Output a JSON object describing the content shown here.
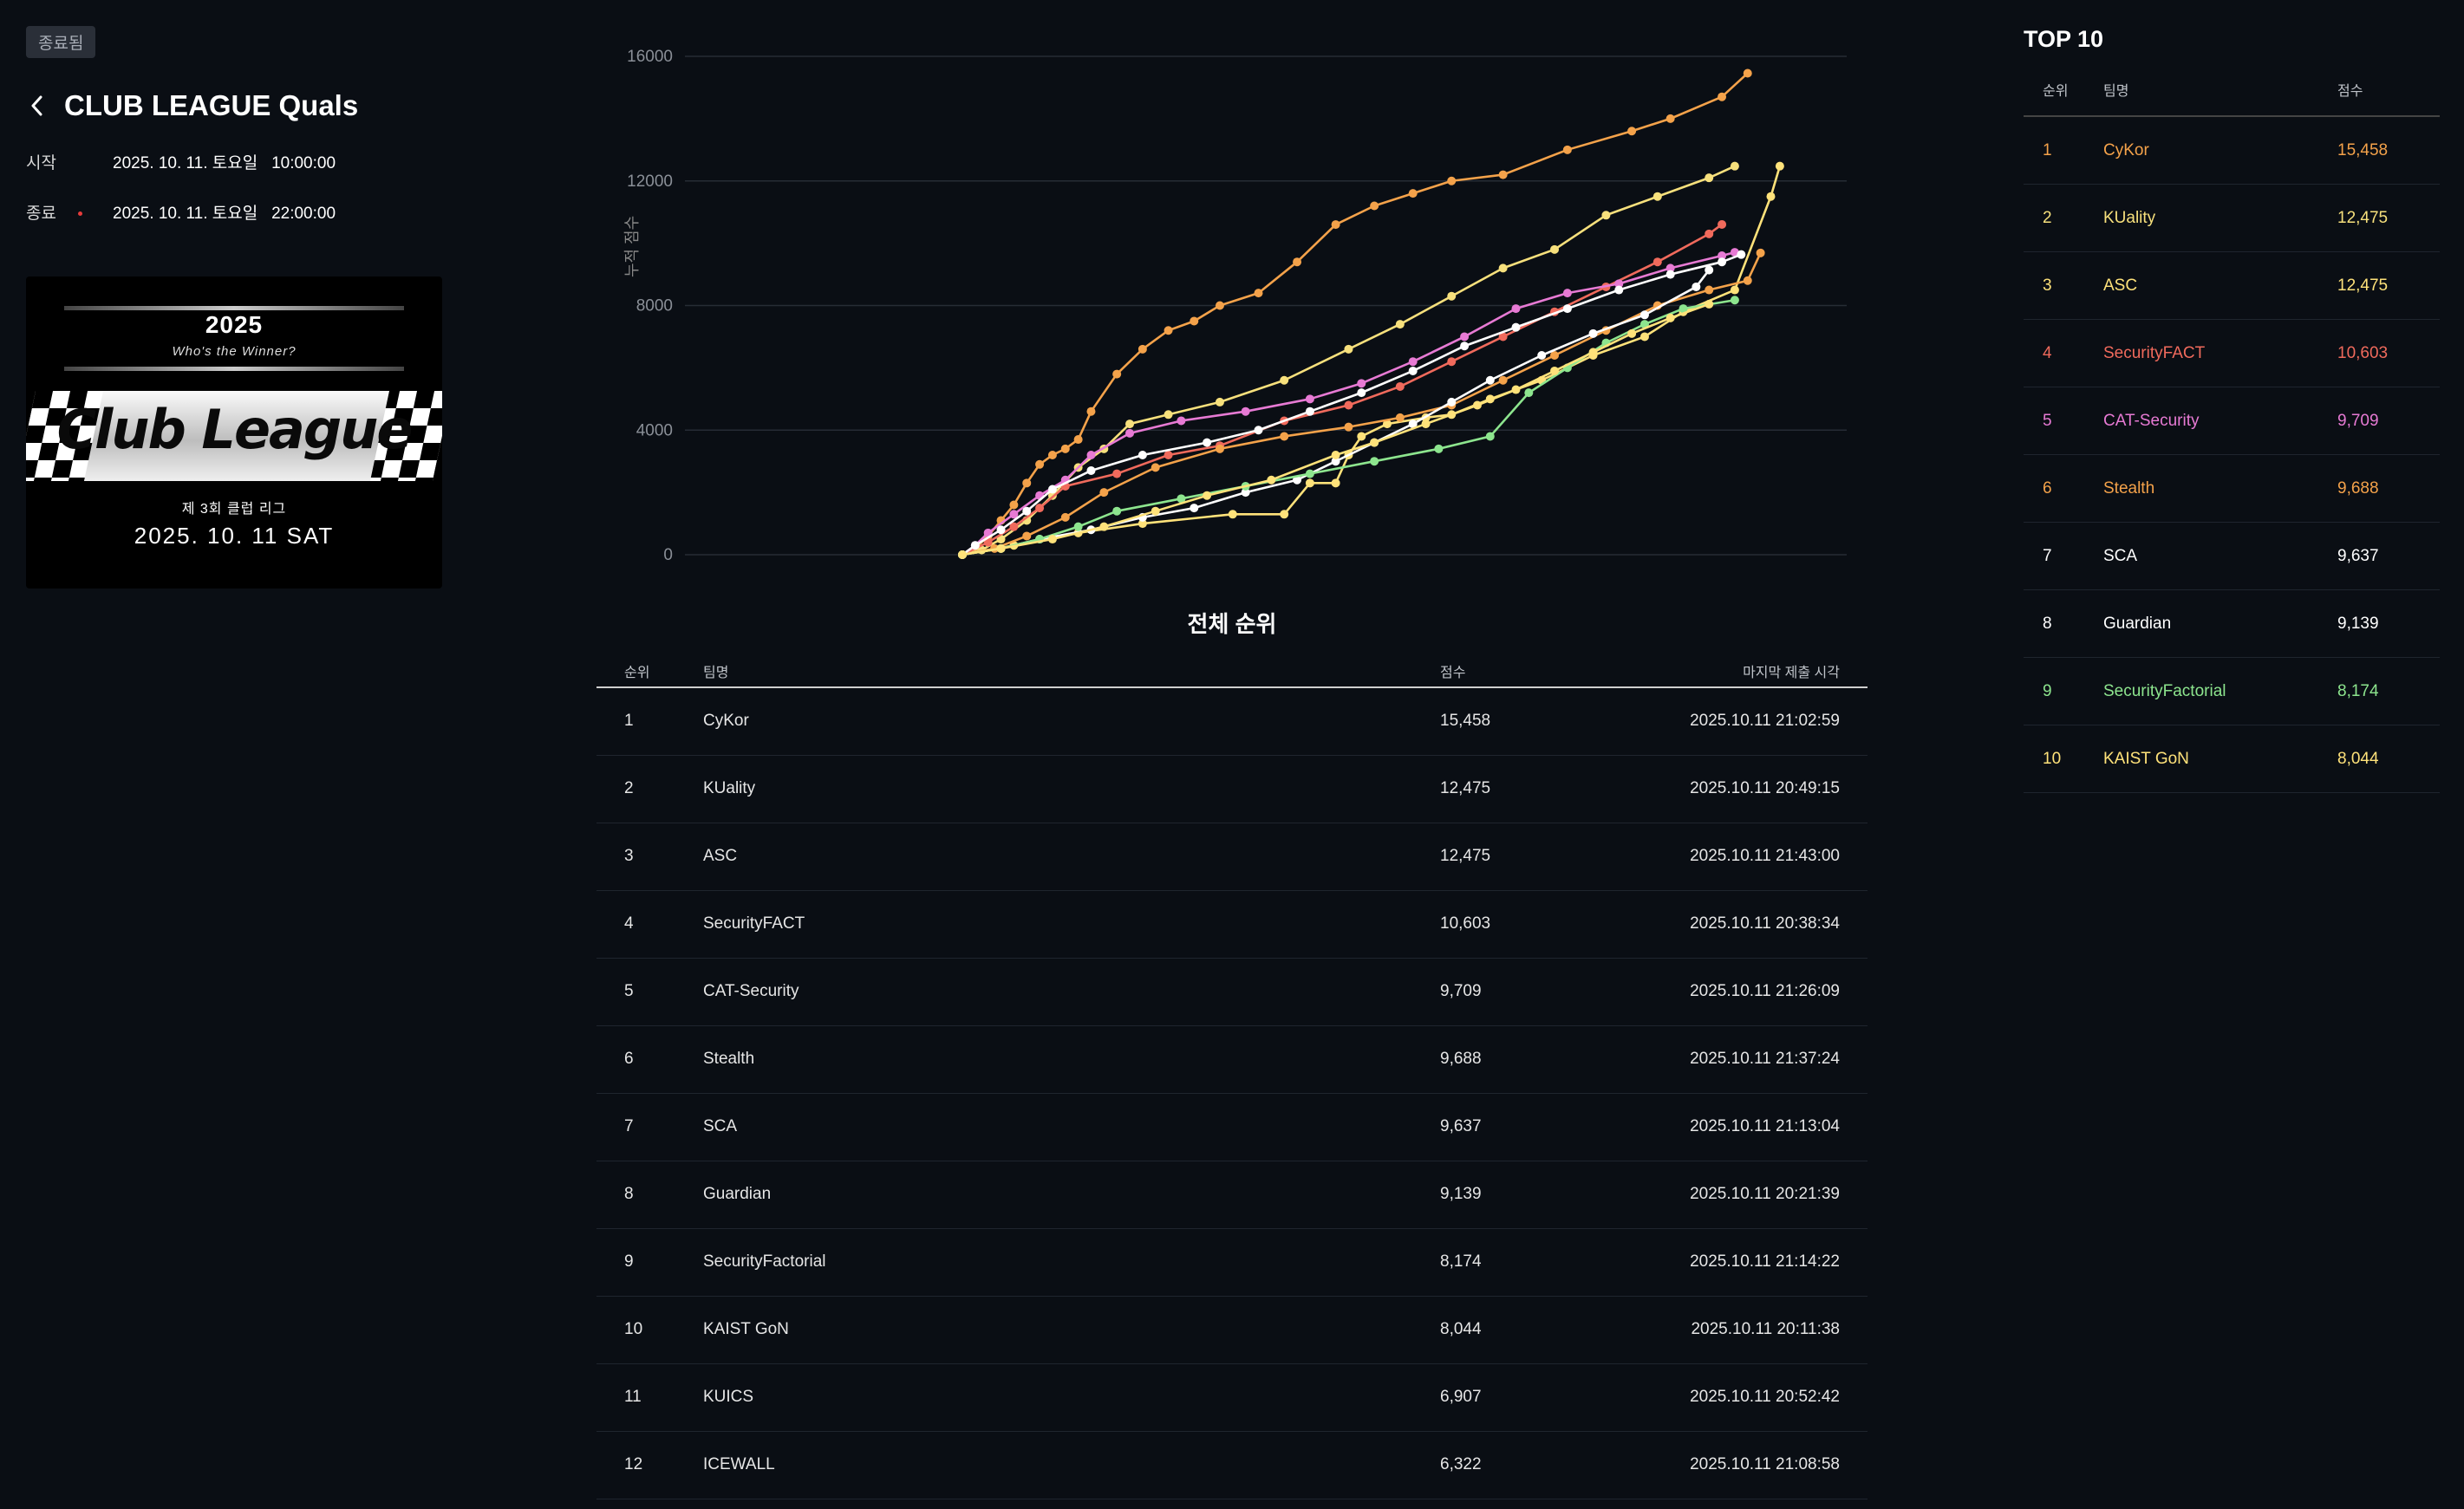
{
  "header": {
    "status_badge": "종료됨",
    "title": "CLUB LEAGUE Quals",
    "start_label": "시작",
    "start_value": "2025. 10. 11. 토요일   10:00:00",
    "end_label": "종료",
    "end_value": "2025. 10. 11. 토요일   22:00:00"
  },
  "banner": {
    "year": "2025",
    "tagline": "Who's the Winner?",
    "logo": "Club League",
    "subtitle": "제 3회 클럽 리그",
    "date": "2025. 10. 11 SAT"
  },
  "chart_data": {
    "type": "line",
    "title": "",
    "xlabel": "",
    "ylabel": "누적 점수",
    "ylim": [
      0,
      16000
    ],
    "yticks": [
      "0",
      "4000",
      "8000",
      "12000",
      "16000"
    ],
    "grid": true,
    "x_range_minutes": [
      0,
      660
    ],
    "series": [
      {
        "name": "CyKor",
        "color": "#f4a24a",
        "x": [
          0,
          10,
          20,
          30,
          40,
          50,
          60,
          70,
          80,
          90,
          100,
          120,
          140,
          160,
          180,
          200,
          230,
          260,
          290,
          320,
          350,
          380,
          420,
          470,
          520,
          550,
          590,
          610
        ],
        "y": [
          0,
          200,
          600,
          1100,
          1600,
          2300,
          2900,
          3200,
          3400,
          3700,
          4600,
          5800,
          6600,
          7200,
          7500,
          8000,
          8400,
          9400,
          10600,
          11200,
          11600,
          12000,
          12200,
          13000,
          13600,
          14000,
          14700,
          15458
        ]
      },
      {
        "name": "KUality",
        "color": "#f7e07c",
        "x": [
          0,
          15,
          30,
          50,
          70,
          90,
          110,
          130,
          160,
          200,
          250,
          300,
          340,
          380,
          420,
          460,
          500,
          540,
          580,
          600
        ],
        "y": [
          0,
          150,
          500,
          1100,
          1900,
          2800,
          3400,
          4200,
          4500,
          4900,
          5600,
          6600,
          7400,
          8300,
          9200,
          9800,
          10900,
          11500,
          12100,
          12475
        ]
      },
      {
        "name": "ASC",
        "color": "#ffe27a",
        "x": [
          0,
          40,
          90,
          140,
          210,
          250,
          270,
          290,
          300,
          310,
          330,
          360,
          380,
          410,
          450,
          490,
          530,
          560,
          600,
          628,
          635
        ],
        "y": [
          0,
          300,
          700,
          1000,
          1300,
          1300,
          2300,
          2300,
          3200,
          3800,
          4200,
          4400,
          4500,
          5000,
          5600,
          6400,
          7000,
          7800,
          8500,
          11500,
          12475
        ]
      },
      {
        "name": "SecurityFACT",
        "color": "#f06a5c",
        "x": [
          0,
          20,
          40,
          60,
          80,
          120,
          160,
          200,
          250,
          300,
          340,
          380,
          420,
          460,
          500,
          540,
          580,
          590
        ],
        "y": [
          0,
          400,
          900,
          1500,
          2200,
          2600,
          3200,
          3500,
          4300,
          4800,
          5400,
          6200,
          7000,
          7800,
          8600,
          9400,
          10300,
          10603
        ]
      },
      {
        "name": "CAT-Security",
        "color": "#e77ad4",
        "x": [
          0,
          10,
          20,
          40,
          60,
          80,
          100,
          130,
          170,
          220,
          270,
          310,
          350,
          390,
          430,
          470,
          510,
          550,
          590,
          600
        ],
        "y": [
          0,
          300,
          700,
          1300,
          1900,
          2400,
          3200,
          3900,
          4300,
          4600,
          5000,
          5500,
          6200,
          7000,
          7900,
          8400,
          8700,
          9200,
          9600,
          9709
        ]
      },
      {
        "name": "Stealth",
        "color": "#f4a24a",
        "x": [
          0,
          25,
          50,
          80,
          110,
          150,
          200,
          250,
          300,
          340,
          380,
          420,
          460,
          500,
          540,
          580,
          610,
          620
        ],
        "y": [
          0,
          200,
          600,
          1200,
          2000,
          2800,
          3400,
          3800,
          4100,
          4400,
          4800,
          5600,
          6400,
          7200,
          8000,
          8500,
          8800,
          9688
        ]
      },
      {
        "name": "SCA",
        "color": "#ffffff",
        "x": [
          0,
          10,
          30,
          50,
          70,
          100,
          140,
          190,
          230,
          270,
          310,
          350,
          390,
          430,
          470,
          510,
          550,
          590,
          605
        ],
        "y": [
          0,
          300,
          800,
          1400,
          2100,
          2700,
          3200,
          3600,
          4000,
          4600,
          5200,
          5900,
          6700,
          7300,
          7900,
          8500,
          9000,
          9400,
          9637
        ]
      },
      {
        "name": "Guardian",
        "color": "#ffffff",
        "x": [
          0,
          30,
          60,
          100,
          140,
          180,
          220,
          260,
          290,
          320,
          350,
          380,
          410,
          450,
          490,
          530,
          570,
          580
        ],
        "y": [
          0,
          200,
          500,
          800,
          1200,
          1500,
          2000,
          2400,
          3000,
          3600,
          4200,
          4900,
          5600,
          6400,
          7100,
          7700,
          8600,
          9139
        ]
      },
      {
        "name": "SecurityFactorial",
        "color": "#8de58e",
        "x": [
          0,
          30,
          60,
          90,
          120,
          170,
          220,
          270,
          320,
          370,
          410,
          440,
          470,
          500,
          530,
          560,
          600
        ],
        "y": [
          0,
          200,
          500,
          900,
          1400,
          1800,
          2200,
          2600,
          3000,
          3400,
          3800,
          5200,
          6000,
          6800,
          7400,
          7900,
          8174
        ]
      },
      {
        "name": "KAIST GoN",
        "color": "#ffe27a",
        "x": [
          0,
          30,
          70,
          110,
          150,
          190,
          240,
          290,
          320,
          360,
          400,
          430,
          460,
          490,
          520,
          550,
          580
        ],
        "y": [
          0,
          200,
          500,
          900,
          1400,
          1900,
          2400,
          3200,
          3600,
          4200,
          4800,
          5300,
          5900,
          6500,
          7100,
          7600,
          8044
        ]
      }
    ]
  },
  "standings": {
    "title": "전체 순위",
    "columns": [
      "순위",
      "팀명",
      "점수",
      "마지막 제출 시각"
    ],
    "rows": [
      [
        "1",
        "CyKor",
        "15,458",
        "2025.10.11 21:02:59"
      ],
      [
        "2",
        "KUality",
        "12,475",
        "2025.10.11 20:49:15"
      ],
      [
        "3",
        "ASC",
        "12,475",
        "2025.10.11 21:43:00"
      ],
      [
        "4",
        "SecurityFACT",
        "10,603",
        "2025.10.11 20:38:34"
      ],
      [
        "5",
        "CAT-Security",
        "9,709",
        "2025.10.11 21:26:09"
      ],
      [
        "6",
        "Stealth",
        "9,688",
        "2025.10.11 21:37:24"
      ],
      [
        "7",
        "SCA",
        "9,637",
        "2025.10.11 21:13:04"
      ],
      [
        "8",
        "Guardian",
        "9,139",
        "2025.10.11 20:21:39"
      ],
      [
        "9",
        "SecurityFactorial",
        "8,174",
        "2025.10.11 21:14:22"
      ],
      [
        "10",
        "KAIST GoN",
        "8,044",
        "2025.10.11 20:11:38"
      ],
      [
        "11",
        "KUICS",
        "6,907",
        "2025.10.11 20:52:42"
      ],
      [
        "12",
        "ICEWALL",
        "6,322",
        "2025.10.11 21:08:58"
      ]
    ]
  },
  "top10": {
    "title": "TOP 10",
    "columns": [
      "순위",
      "팀명",
      "점수"
    ],
    "rows": [
      {
        "rank": "1",
        "team": "CyKor",
        "score": "15,458",
        "color": "#f4a24a"
      },
      {
        "rank": "2",
        "team": "KUality",
        "score": "12,475",
        "color": "#f7e07c"
      },
      {
        "rank": "3",
        "team": "ASC",
        "score": "12,475",
        "color": "#ffe27a"
      },
      {
        "rank": "4",
        "team": "SecurityFACT",
        "score": "10,603",
        "color": "#f06a5c"
      },
      {
        "rank": "5",
        "team": "CAT-Security",
        "score": "9,709",
        "color": "#e77ad4"
      },
      {
        "rank": "6",
        "team": "Stealth",
        "score": "9,688",
        "color": "#f4a24a"
      },
      {
        "rank": "7",
        "team": "SCA",
        "score": "9,637",
        "color": "#ffffff"
      },
      {
        "rank": "8",
        "team": "Guardian",
        "score": "9,139",
        "color": "#ffffff"
      },
      {
        "rank": "9",
        "team": "SecurityFactorial",
        "score": "8,174",
        "color": "#8de58e"
      },
      {
        "rank": "10",
        "team": "KAIST GoN",
        "score": "8,044",
        "color": "#ffe27a"
      }
    ]
  }
}
